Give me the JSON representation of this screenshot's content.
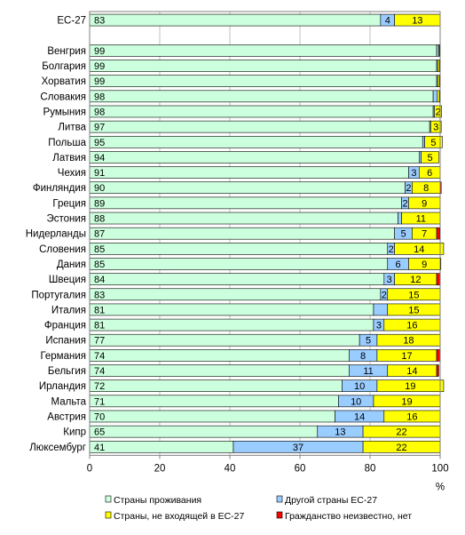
{
  "chart_data": {
    "type": "bar",
    "orientation": "horizontal",
    "stacked": true,
    "percent_axis_label": "%",
    "xlim": [
      0,
      100
    ],
    "x_ticks": [
      "0",
      "20",
      "40",
      "60",
      "80",
      "100"
    ],
    "grid": true,
    "legend_position": "bottom",
    "categories": [
      "ЕС-27",
      "",
      "Венгрия",
      "Болгария",
      "Хорватия",
      "Словакия",
      "Румыния",
      "Литва",
      "Польша",
      "Латвия",
      "Чехия",
      "Финляндия",
      "Греция",
      "Эстония",
      "Нидерланды",
      "Словения",
      "Дания",
      "Швеция",
      "Португалия",
      "Италия",
      "Франция",
      "Испания",
      "Германия",
      "Бельгия",
      "Ирландия",
      "Мальта",
      "Австрия",
      "Кипр",
      "Люксембург"
    ],
    "series": [
      {
        "name": "Страны проживания",
        "color": "#ccffdd",
        "values": [
          83,
          null,
          99,
          99,
          99,
          98,
          98,
          97,
          95,
          94,
          91,
          90,
          89,
          88,
          87,
          85,
          85,
          84,
          83,
          81,
          81,
          77,
          74,
          74,
          72,
          71,
          70,
          65,
          41
        ],
        "labels": [
          "83",
          "",
          "99",
          "99",
          "99",
          "98",
          "98",
          "97",
          "95",
          "94",
          "91",
          "90",
          "89",
          "88",
          "87",
          "85",
          "85",
          "84",
          "83",
          "81",
          "81",
          "77",
          "74",
          "74",
          "72",
          "71",
          "70",
          "65",
          "41"
        ]
      },
      {
        "name": "Другой страны ЕС-27",
        "color": "#99ccff",
        "values": [
          4,
          null,
          0.6,
          0.3,
          0.3,
          1.2,
          0.4,
          0.3,
          0.6,
          0.6,
          3,
          2,
          2,
          1,
          5,
          2,
          6,
          3,
          2,
          4,
          3,
          5,
          8,
          11,
          10,
          10,
          14,
          13,
          37
        ],
        "labels": [
          "4",
          "",
          "",
          "",
          "",
          "",
          "",
          "",
          "",
          "",
          "3",
          "2",
          "2",
          "",
          "5",
          "2",
          "6",
          "3",
          "2",
          "",
          "3",
          "5",
          "8",
          "11",
          "10",
          "10",
          "14",
          "13",
          "37"
        ]
      },
      {
        "name": "Страны, не входящей в ЕС-27",
        "color": "#ffff00",
        "values": [
          13,
          null,
          0.2,
          0.5,
          0.5,
          0.6,
          2,
          3,
          5,
          5,
          6,
          8,
          9,
          11,
          7,
          14,
          9,
          12,
          15,
          15,
          16,
          18,
          17,
          14,
          19,
          19,
          16,
          22,
          22
        ],
        "labels": [
          "13",
          "",
          "",
          "",
          "",
          "",
          "2",
          "3",
          "5",
          "5",
          "6",
          "8",
          "9",
          "11",
          "7",
          "14",
          "9",
          "12",
          "15",
          "15",
          "16",
          "18",
          "17",
          "14",
          "19",
          "19",
          "16",
          "22",
          "22"
        ]
      },
      {
        "name": "Гражданство неизвестно, нет",
        "color": "#ff0000",
        "values": [
          0,
          null,
          0.2,
          0.2,
          0.2,
          0.2,
          0,
          0,
          0,
          0,
          0,
          0.3,
          0,
          0,
          0.8,
          0,
          0.2,
          1,
          0,
          0,
          0,
          0,
          1,
          0.6,
          0,
          0,
          0,
          0,
          0
        ],
        "labels": [
          "",
          "",
          "",
          "",
          "",
          "",
          "",
          "",
          "",
          "",
          "",
          "",
          "",
          "",
          "",
          "",
          "",
          "",
          "",
          "",
          "",
          "",
          "",
          "",
          "",
          "",
          "",
          "",
          ""
        ]
      }
    ]
  }
}
